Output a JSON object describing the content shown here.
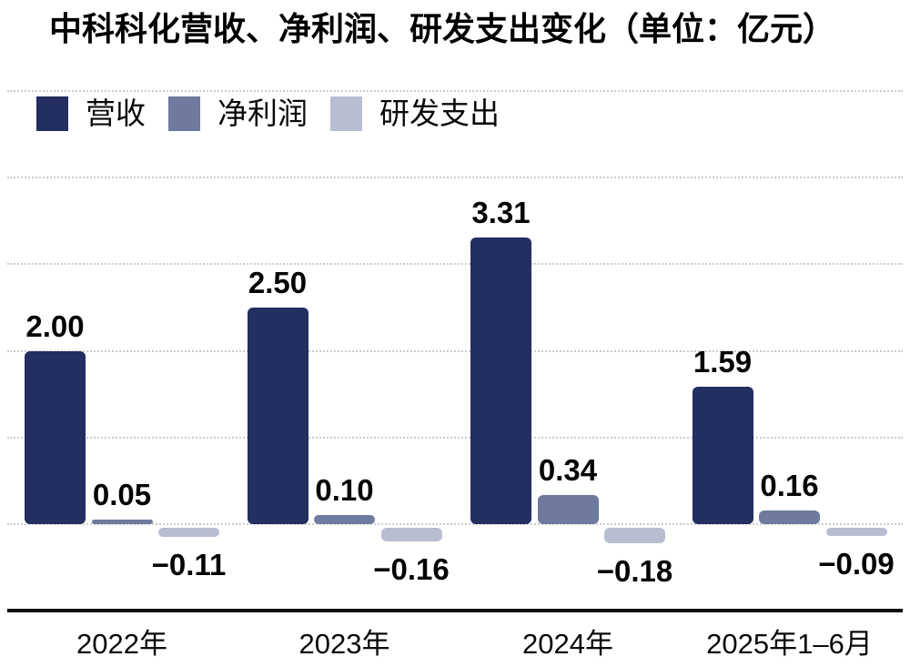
{
  "page": {
    "background": "#ffffff"
  },
  "chart_data": {
    "type": "bar",
    "title": "中科科化营收、净利润、研发支出变化（单位：亿元）",
    "categories": [
      "2022年",
      "2023年",
      "2024年",
      "2025年1–6月"
    ],
    "series": [
      {
        "key": "revenue",
        "name": "营收",
        "color": "#232e61",
        "values": [
          2.0,
          2.5,
          3.31,
          1.59
        ],
        "labels": [
          "2.00",
          "2.50",
          "3.31",
          "1.59"
        ]
      },
      {
        "key": "net-profit",
        "name": "净利润",
        "color": "#6e7a9e",
        "values": [
          0.05,
          0.1,
          0.34,
          0.16
        ],
        "labels": [
          "0.05",
          "0.10",
          "0.34",
          "0.16"
        ]
      },
      {
        "key": "rd-expense",
        "name": "研发支出",
        "color": "#b9bdd1",
        "values": [
          -0.11,
          -0.16,
          -0.18,
          -0.09
        ],
        "labels": [
          "−0.11",
          "−0.16",
          "−0.18",
          "−0.09"
        ]
      }
    ],
    "ylim": [
      -1,
      5
    ],
    "grid": true,
    "gridline_values": [
      0,
      1,
      2,
      3,
      4,
      5
    ],
    "legend_position": "top-left",
    "colors": {
      "grid": "#cccccc",
      "axis": "#0d0d0d",
      "text": "#050505"
    }
  }
}
